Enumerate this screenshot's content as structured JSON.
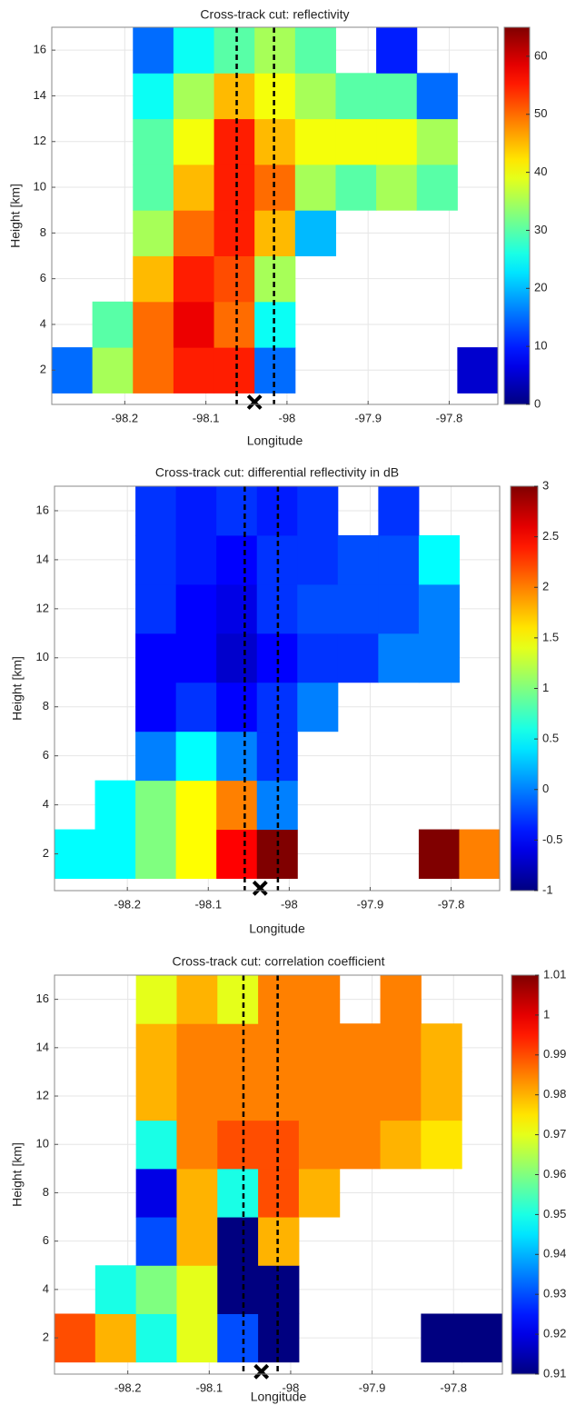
{
  "chart_data": [
    {
      "type": "heatmap",
      "title": "Cross-track cut: reflectivity",
      "x_label": "Longitude",
      "y_label": "Height [km]",
      "colormap": "jet",
      "xlim": [
        -98.29,
        -97.74
      ],
      "xticks": [
        -98.2,
        -98.1,
        -98,
        -97.9,
        -97.8
      ],
      "ylim": [
        0.5,
        17
      ],
      "yticks": [
        2,
        4,
        6,
        8,
        10,
        12,
        14,
        16
      ],
      "grid": true,
      "clim": [
        0,
        65
      ],
      "cticks": [
        0,
        10,
        20,
        30,
        40,
        50,
        60
      ],
      "x_edges": [
        -98.29,
        -98.24,
        -98.19,
        -98.14,
        -98.09,
        -98.04,
        -97.99,
        -97.94,
        -97.89,
        -97.84,
        -97.79,
        -97.74
      ],
      "y_edges": [
        1,
        3,
        5,
        7,
        9,
        11,
        13,
        15,
        17
      ],
      "z": [
        [
          15,
          35,
          50,
          55,
          55,
          15,
          null,
          null,
          null,
          null,
          5
        ],
        [
          null,
          30,
          50,
          58,
          50,
          25,
          null,
          null,
          null,
          null,
          null
        ],
        [
          null,
          null,
          45,
          55,
          52,
          35,
          null,
          null,
          null,
          null,
          null
        ],
        [
          null,
          null,
          35,
          50,
          55,
          45,
          20,
          null,
          null,
          null,
          null
        ],
        [
          null,
          null,
          30,
          45,
          55,
          50,
          35,
          30,
          35,
          30,
          null
        ],
        [
          null,
          null,
          30,
          40,
          55,
          45,
          40,
          40,
          40,
          35,
          null
        ],
        [
          null,
          null,
          25,
          35,
          45,
          40,
          35,
          30,
          30,
          15,
          null
        ],
        [
          null,
          null,
          15,
          25,
          30,
          35,
          30,
          null,
          10,
          null,
          null
        ]
      ],
      "vlines": [
        -98.062,
        -98.016
      ],
      "marker": {
        "x": -98.04,
        "y": 0.6
      }
    },
    {
      "type": "heatmap",
      "title": "Cross-track cut: differential reflectivity in dB",
      "x_label": "Longitude",
      "y_label": "Height [km]",
      "colormap": "jet",
      "xlim": [
        -98.29,
        -97.74
      ],
      "xticks": [
        -98.2,
        -98.1,
        -98,
        -97.9,
        -97.8
      ],
      "ylim": [
        0.5,
        17
      ],
      "yticks": [
        2,
        4,
        6,
        8,
        10,
        12,
        14,
        16
      ],
      "grid": true,
      "clim": [
        -1,
        3
      ],
      "cticks": [
        -1,
        -0.5,
        0,
        0.5,
        1,
        1.5,
        2,
        2.5,
        3
      ],
      "x_edges": [
        -98.29,
        -98.24,
        -98.19,
        -98.14,
        -98.09,
        -98.04,
        -97.99,
        -97.94,
        -97.89,
        -97.84,
        -97.79,
        -97.74
      ],
      "y_edges": [
        1,
        3,
        5,
        7,
        9,
        11,
        13,
        15,
        17
      ],
      "z": [
        [
          0.5,
          0.5,
          1,
          1.5,
          2.5,
          3,
          null,
          null,
          null,
          3,
          2
        ],
        [
          null,
          0.5,
          1,
          1.5,
          2,
          0,
          null,
          null,
          null,
          null,
          null
        ],
        [
          null,
          null,
          0,
          0.5,
          0,
          -0.3,
          null,
          null,
          null,
          null,
          null
        ],
        [
          null,
          null,
          -0.5,
          -0.3,
          -0.5,
          -0.3,
          0,
          null,
          null,
          null,
          null
        ],
        [
          null,
          null,
          -0.5,
          -0.5,
          -0.7,
          -0.5,
          -0.3,
          -0.3,
          0,
          0,
          null
        ],
        [
          null,
          null,
          -0.3,
          -0.5,
          -0.6,
          -0.3,
          -0.2,
          -0.2,
          -0.2,
          0,
          null
        ],
        [
          null,
          null,
          -0.3,
          -0.4,
          -0.5,
          -0.3,
          -0.3,
          -0.2,
          -0.2,
          0.5,
          null
        ],
        [
          null,
          null,
          -0.3,
          -0.4,
          -0.3,
          -0.4,
          -0.3,
          null,
          -0.3,
          null,
          null
        ]
      ],
      "vlines": [
        -98.055,
        -98.014
      ],
      "marker": {
        "x": -98.036,
        "y": 0.6
      }
    },
    {
      "type": "heatmap",
      "title": "Cross-track cut: correlation coefficient",
      "x_label": "Longitude",
      "y_label": "Height [km]",
      "colormap": "jet",
      "xlim": [
        -98.29,
        -97.74
      ],
      "xticks": [
        -98.2,
        -98.1,
        -98,
        -97.9,
        -97.8
      ],
      "ylim": [
        0.5,
        17
      ],
      "yticks": [
        2,
        4,
        6,
        8,
        10,
        12,
        14,
        16
      ],
      "grid": true,
      "clim": [
        0.91,
        1.01
      ],
      "cticks": [
        0.91,
        0.92,
        0.93,
        0.94,
        0.95,
        0.96,
        0.97,
        0.98,
        0.99,
        1,
        1.01
      ],
      "x_edges": [
        -98.29,
        -98.24,
        -98.19,
        -98.14,
        -98.09,
        -98.04,
        -97.99,
        -97.94,
        -97.89,
        -97.84,
        -97.79,
        -97.74
      ],
      "y_edges": [
        1,
        3,
        5,
        7,
        9,
        11,
        13,
        15,
        17
      ],
      "z": [
        [
          0.99,
          0.98,
          0.95,
          0.97,
          0.93,
          0.91,
          null,
          null,
          null,
          0.91,
          0.91
        ],
        [
          null,
          0.95,
          0.96,
          0.97,
          0.91,
          0.91,
          null,
          null,
          null,
          null,
          null
        ],
        [
          null,
          null,
          0.93,
          0.98,
          0.91,
          0.98,
          null,
          null,
          null,
          null,
          null
        ],
        [
          null,
          null,
          0.92,
          0.98,
          0.95,
          0.99,
          0.98,
          null,
          null,
          null,
          null
        ],
        [
          null,
          null,
          0.95,
          0.985,
          0.99,
          0.99,
          0.985,
          0.985,
          0.98,
          0.975,
          null
        ],
        [
          null,
          null,
          0.98,
          0.985,
          0.985,
          0.985,
          0.985,
          0.985,
          0.985,
          0.98,
          null
        ],
        [
          null,
          null,
          0.98,
          0.985,
          0.985,
          0.985,
          0.985,
          0.985,
          0.985,
          0.98,
          null
        ],
        [
          null,
          null,
          0.97,
          0.98,
          0.97,
          0.985,
          0.985,
          null,
          0.985,
          null,
          null
        ]
      ],
      "vlines": [
        -98.058,
        -98.016
      ],
      "marker": {
        "x": -98.036,
        "y": 0.6
      }
    }
  ]
}
